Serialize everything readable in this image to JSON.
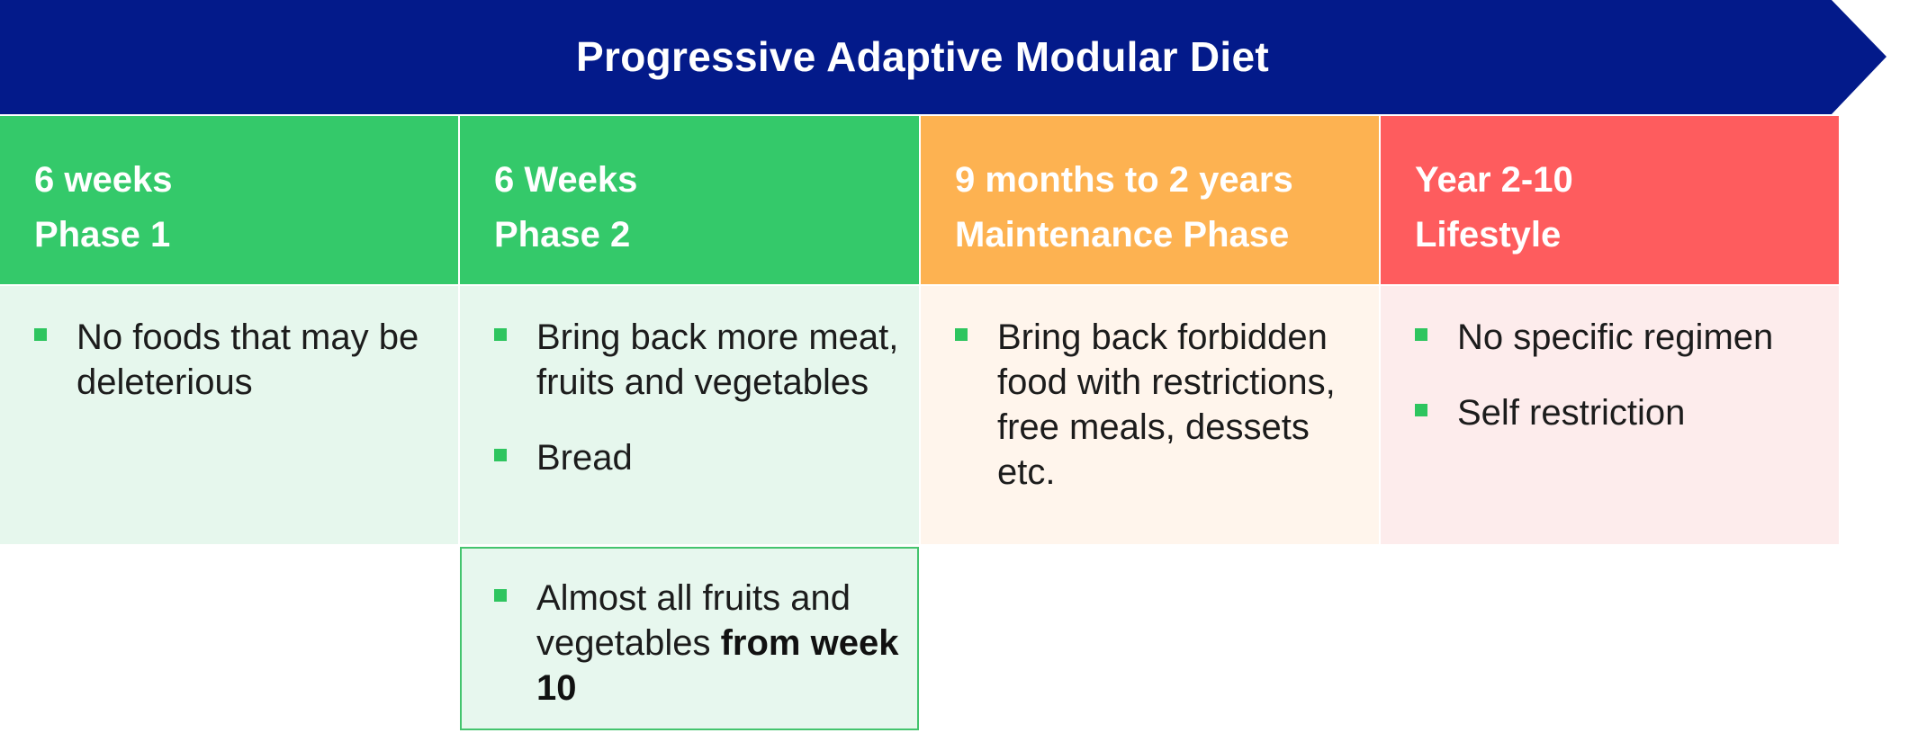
{
  "banner": {
    "title": "Progressive Adaptive Modular Diet",
    "color": "#031a8a"
  },
  "bullet_color": "#2ec55f",
  "columns": [
    {
      "duration": "6 weeks",
      "phase": "Phase 1",
      "header_color": "#34c96a",
      "body_color": "#e6f7ed",
      "items": [
        "No foods that may be deleterious"
      ]
    },
    {
      "duration": "6 Weeks",
      "phase": "Phase 2",
      "header_color": "#34c96a",
      "body_color": "#e6f7ed",
      "items": [
        "Bring back more meat, fruits and vegetables",
        "Bread"
      ]
    },
    {
      "duration": "9 months to 2 years",
      "phase": "Maintenance Phase",
      "header_color": "#fdb251",
      "body_color": "#fff5ec",
      "items": [
        "Bring back forbidden food with restrictions, free meals, dessets etc."
      ]
    },
    {
      "duration": "Year 2-10",
      "phase": "Lifestyle",
      "header_color": "#fe5c5e",
      "body_color": "#fdecec",
      "items": [
        "No specific regimen",
        "Self restriction"
      ]
    }
  ],
  "phase2_extra": {
    "text": "Almost all fruits and vegetables",
    "bold_text": "from week 10",
    "border_color": "#44c46e",
    "background": "#e7f7ee"
  }
}
